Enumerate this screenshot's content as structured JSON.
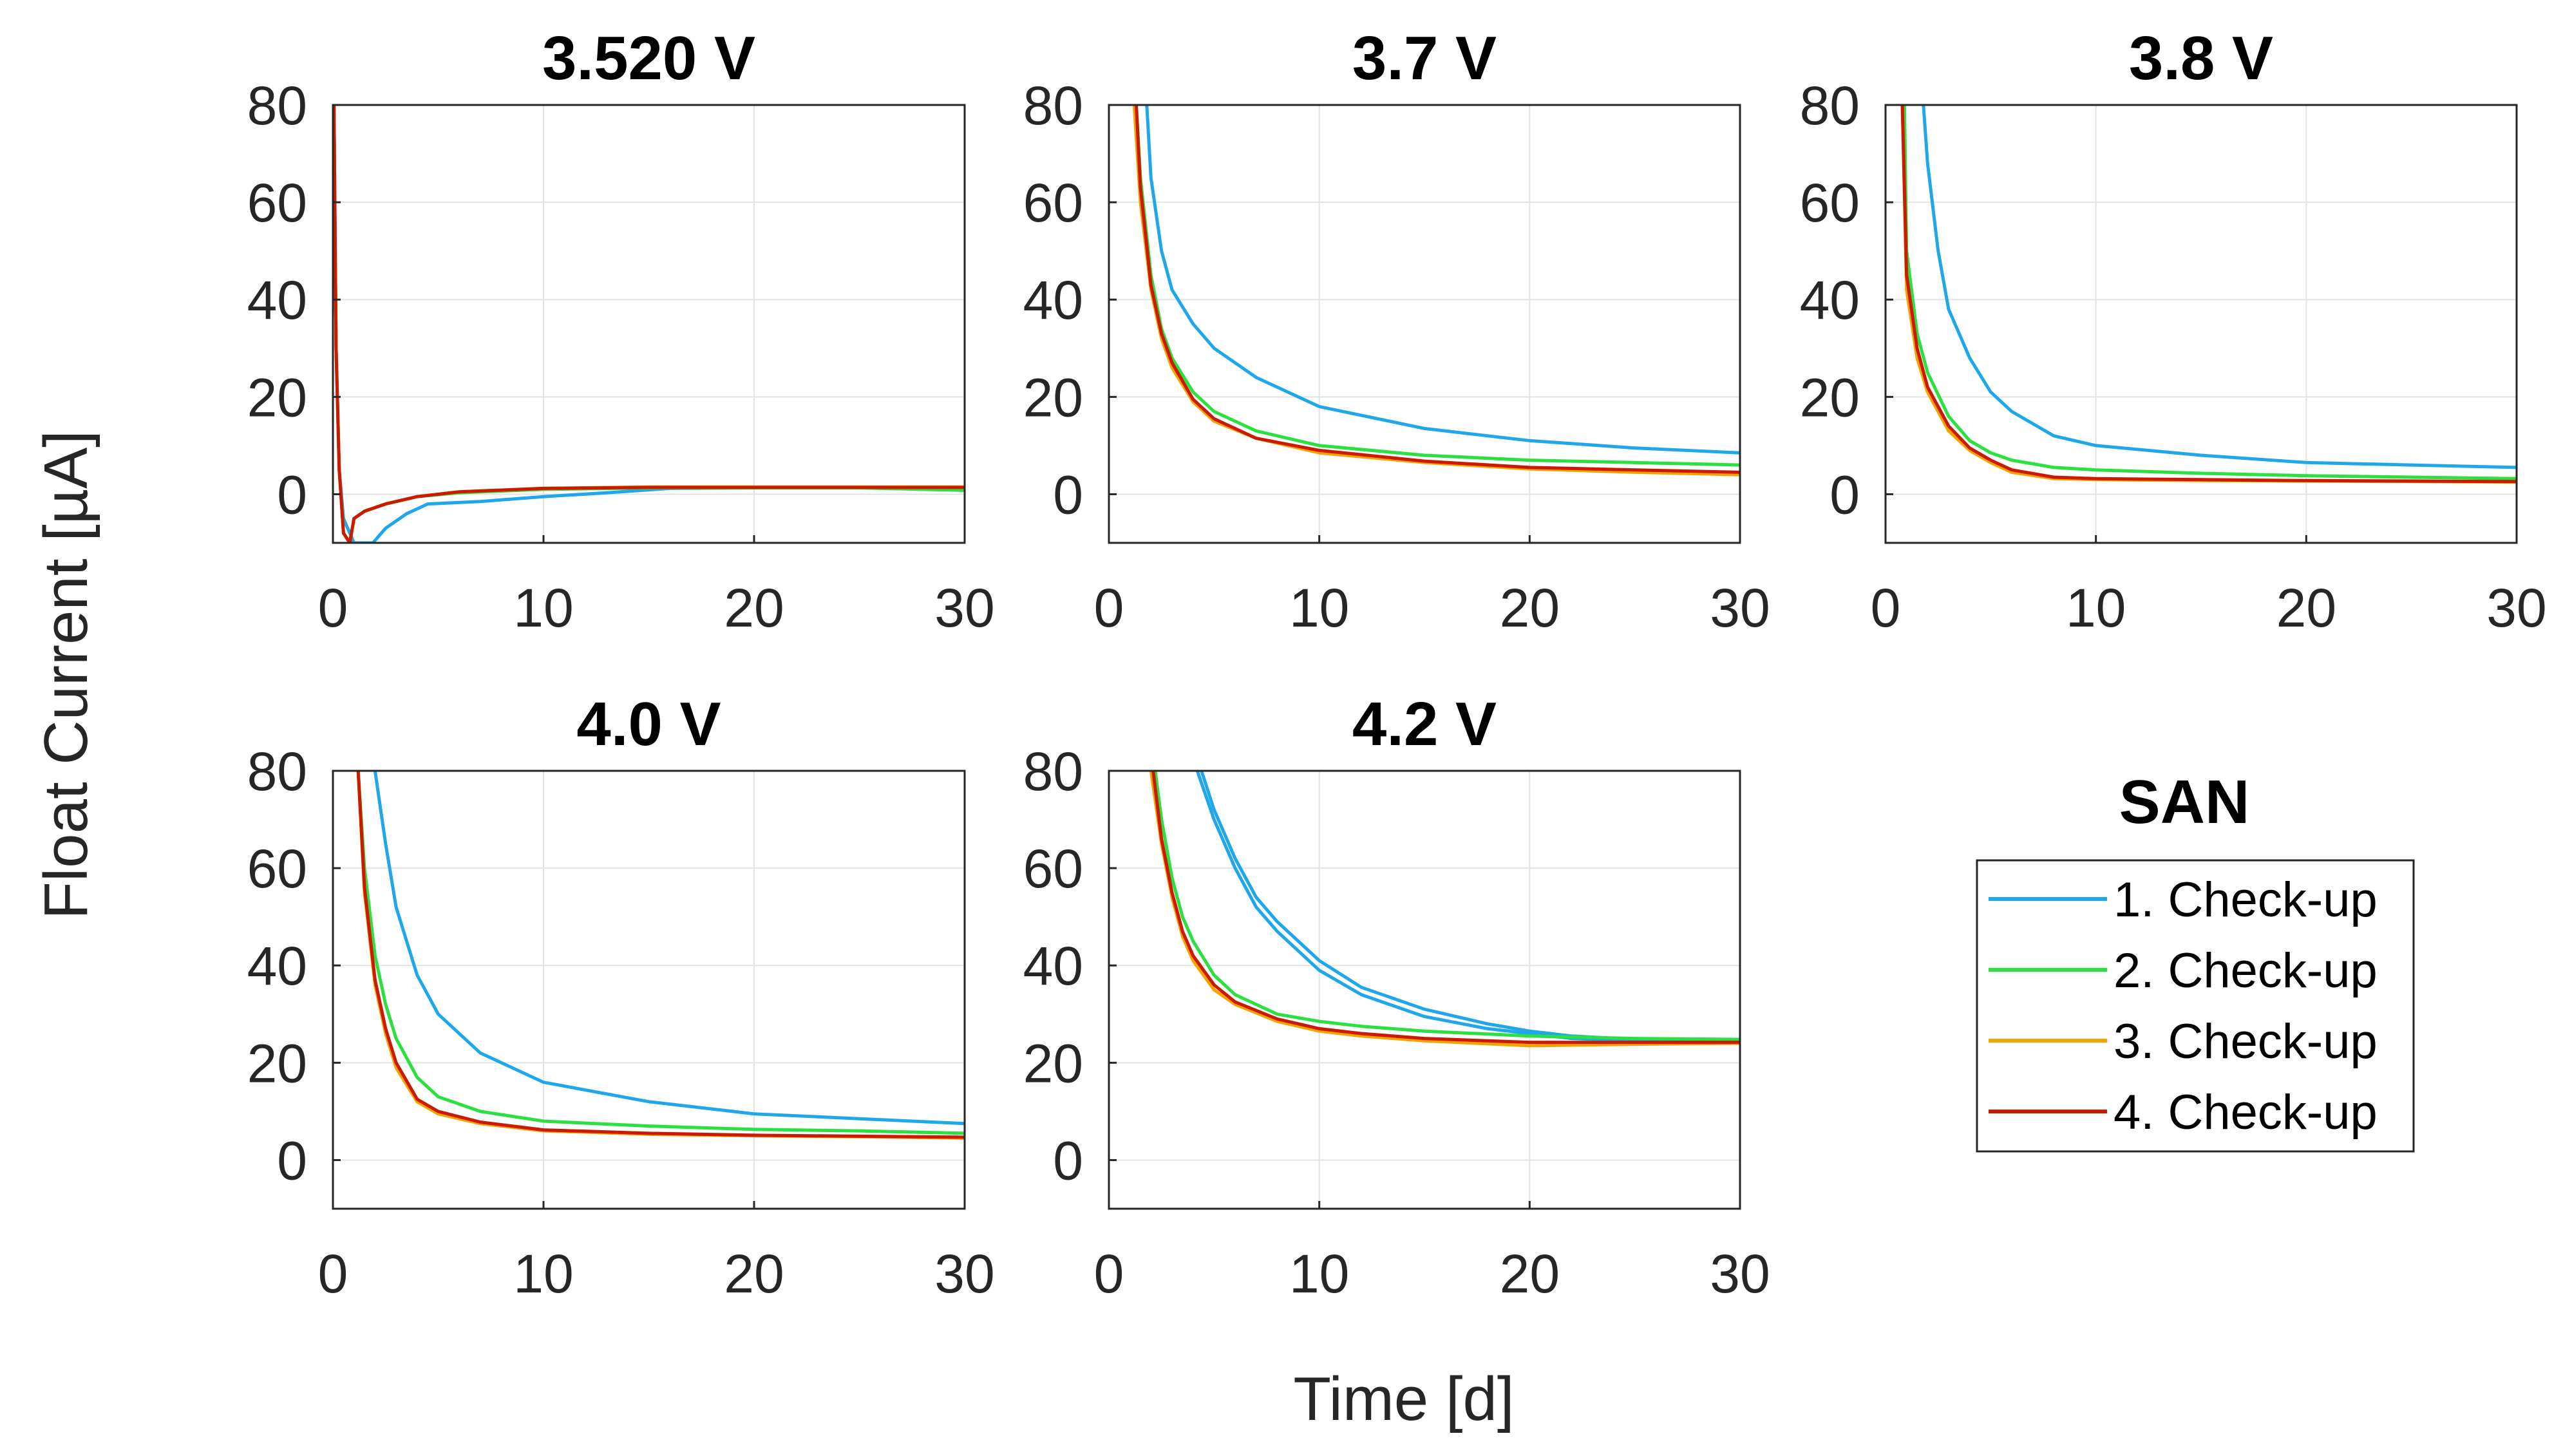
{
  "figure": {
    "ylabel": "Float Current [µA]",
    "xlabel": "Time [d]"
  },
  "legend": {
    "title": "SAN",
    "entries": [
      "1. Check-up",
      "2. Check-up",
      "3. Check-up",
      "4. Check-up"
    ],
    "colors": [
      "#1EA7EA",
      "#2BE040",
      "#F5A300",
      "#CC1A00"
    ]
  },
  "chart_data": [
    {
      "type": "line",
      "title": "3.520 V",
      "xlim": [
        0,
        30
      ],
      "ylim": [
        -10,
        80
      ],
      "xticks": [
        0,
        10,
        20,
        30
      ],
      "yticks": [
        0,
        20,
        40,
        60,
        80
      ],
      "grid": true,
      "series": [
        {
          "name": "1. Check-up",
          "x": [
            0.05,
            0.15,
            0.3,
            0.5,
            1.0,
            1.5,
            1.9,
            2.5,
            3.5,
            4.5,
            7,
            10,
            13,
            16,
            20,
            25,
            30
          ],
          "y": [
            80,
            30,
            5,
            -5,
            -10,
            -10,
            -10,
            -7,
            -4,
            -2,
            -1.5,
            -0.5,
            0.3,
            1.2,
            1.3,
            1.3,
            1.4
          ]
        },
        {
          "name": "2. Check-up",
          "x": [
            0.05,
            0.15,
            0.3,
            0.5,
            0.8,
            1.0,
            1.5,
            2.5,
            4,
            6,
            10,
            15,
            20,
            25,
            30
          ],
          "y": [
            80,
            30,
            5,
            -8,
            -10,
            -5,
            -3.5,
            -2,
            -0.5,
            0.3,
            1.0,
            1.3,
            1.3,
            1.3,
            0.8
          ]
        },
        {
          "name": "3. Check-up",
          "x": [
            0.05,
            0.15,
            0.3,
            0.5,
            0.8,
            1.0,
            1.5,
            2.5,
            4,
            6,
            10,
            15,
            20,
            25,
            30
          ],
          "y": [
            80,
            30,
            5,
            -8,
            -10,
            -5,
            -3.5,
            -2,
            -0.5,
            0.5,
            1.2,
            1.5,
            1.5,
            1.5,
            1.5
          ]
        },
        {
          "name": "4. Check-up",
          "x": [
            0.05,
            0.15,
            0.3,
            0.5,
            0.8,
            1.0,
            1.5,
            2.5,
            4,
            6,
            10,
            15,
            20,
            25,
            30
          ],
          "y": [
            80,
            30,
            5,
            -8,
            -10,
            -5,
            -3.5,
            -2,
            -0.5,
            0.5,
            1.2,
            1.4,
            1.4,
            1.4,
            1.4
          ]
        }
      ]
    },
    {
      "type": "line",
      "title": "3.7 V",
      "xlim": [
        0,
        30
      ],
      "ylim": [
        -10,
        80
      ],
      "xticks": [
        0,
        10,
        20,
        30
      ],
      "yticks": [
        0,
        20,
        40,
        60,
        80
      ],
      "grid": true,
      "series": [
        {
          "name": "1. Check-up",
          "x": [
            1.8,
            2,
            2.5,
            3,
            4,
            5,
            7,
            10,
            15,
            20,
            25,
            30
          ],
          "y": [
            80,
            65,
            50,
            42,
            35,
            30,
            24,
            18,
            13.5,
            11,
            9.5,
            8.5
          ]
        },
        {
          "name": "2. Check-up",
          "x": [
            1.3,
            1.5,
            2,
            2.5,
            3,
            4,
            5,
            7,
            10,
            15,
            20,
            25,
            30
          ],
          "y": [
            80,
            65,
            45,
            34,
            28,
            21,
            17,
            13,
            10,
            8,
            7,
            6.5,
            6
          ]
        },
        {
          "name": "3. Check-up",
          "x": [
            1.2,
            1.5,
            2,
            2.5,
            3,
            4,
            5,
            7,
            10,
            15,
            20,
            25,
            30
          ],
          "y": [
            80,
            60,
            42,
            32,
            26,
            19,
            15,
            11.5,
            8.5,
            6.5,
            5.2,
            4.5,
            4
          ]
        },
        {
          "name": "4. Check-up",
          "x": [
            1.3,
            1.5,
            2,
            2.5,
            3,
            4,
            5,
            7,
            10,
            15,
            20,
            25,
            30
          ],
          "y": [
            80,
            63,
            43,
            33,
            27,
            19.5,
            15.5,
            11.5,
            9,
            6.8,
            5.5,
            5,
            4.5
          ]
        }
      ]
    },
    {
      "type": "line",
      "title": "3.8 V",
      "xlim": [
        0,
        30
      ],
      "ylim": [
        -10,
        80
      ],
      "xticks": [
        0,
        10,
        20,
        30
      ],
      "yticks": [
        0,
        20,
        40,
        60,
        80
      ],
      "grid": true,
      "series": [
        {
          "name": "1. Check-up",
          "x": [
            1.8,
            2,
            2.5,
            3,
            4,
            5,
            6,
            8,
            10,
            15,
            20,
            25,
            30
          ],
          "y": [
            80,
            68,
            50,
            38,
            28,
            21,
            17,
            12,
            10,
            8,
            6.5,
            6,
            5.5
          ]
        },
        {
          "name": "2. Check-up",
          "x": [
            0.9,
            1,
            1.5,
            2,
            3,
            4,
            5,
            6,
            8,
            10,
            15,
            20,
            25,
            30
          ],
          "y": [
            80,
            50,
            33,
            25,
            16,
            11,
            8.5,
            7,
            5.5,
            5,
            4.3,
            3.8,
            3.5,
            3.2
          ]
        },
        {
          "name": "3. Check-up",
          "x": [
            0.8,
            1,
            1.5,
            2,
            3,
            4,
            5,
            6,
            8,
            10,
            15,
            20,
            25,
            30
          ],
          "y": [
            80,
            42,
            28,
            21,
            13,
            9,
            6.5,
            4.5,
            3.2,
            3,
            2.8,
            2.7,
            2.6,
            2.5
          ]
        },
        {
          "name": "4. Check-up",
          "x": [
            0.8,
            1,
            1.5,
            2,
            3,
            4,
            5,
            6,
            8,
            10,
            15,
            20,
            25,
            30
          ],
          "y": [
            80,
            45,
            30,
            22,
            14,
            9.5,
            7,
            5,
            3.5,
            3.2,
            3,
            2.8,
            2.7,
            2.6
          ]
        }
      ]
    },
    {
      "type": "line",
      "title": "4.0 V",
      "xlim": [
        0,
        30
      ],
      "ylim": [
        -10,
        80
      ],
      "xticks": [
        0,
        10,
        20,
        30
      ],
      "yticks": [
        0,
        20,
        40,
        60,
        80
      ],
      "grid": true,
      "series": [
        {
          "name": "1. Check-up",
          "x": [
            2,
            2.5,
            3,
            4,
            5,
            7,
            10,
            15,
            20,
            25,
            30
          ],
          "y": [
            80,
            65,
            52,
            38,
            30,
            22,
            16,
            12,
            9.5,
            8.5,
            7.5
          ]
        },
        {
          "name": "2. Check-up",
          "x": [
            1.2,
            1.5,
            2,
            2.5,
            3,
            4,
            5,
            7,
            10,
            15,
            20,
            25,
            30
          ],
          "y": [
            80,
            60,
            42,
            32,
            25,
            17,
            13,
            10,
            8,
            7,
            6.3,
            6,
            5.5
          ]
        },
        {
          "name": "3. Check-up",
          "x": [
            1.2,
            1.5,
            2,
            2.5,
            3,
            4,
            5,
            7,
            10,
            15,
            20,
            25,
            30
          ],
          "y": [
            80,
            55,
            36,
            26,
            19,
            12,
            9.5,
            7.5,
            6,
            5.3,
            5,
            4.8,
            4.5
          ]
        },
        {
          "name": "4. Check-up",
          "x": [
            1.2,
            1.5,
            2,
            2.5,
            3,
            4,
            5,
            7,
            10,
            15,
            20,
            25,
            30
          ],
          "y": [
            80,
            56,
            37,
            27,
            20,
            12.5,
            10,
            7.8,
            6.2,
            5.5,
            5.1,
            4.9,
            4.7
          ]
        }
      ]
    },
    {
      "type": "line",
      "title": "4.2 V",
      "xlim": [
        0,
        30
      ],
      "ylim": [
        -10,
        80
      ],
      "xticks": [
        0,
        10,
        20,
        30
      ],
      "yticks": [
        0,
        20,
        40,
        60,
        80
      ],
      "grid": true,
      "series": [
        {
          "name": "1. Check-up",
          "x": [
            4.2,
            5,
            6,
            7,
            8,
            10,
            12,
            15,
            18,
            20,
            22,
            25,
            30
          ],
          "y": [
            80,
            70,
            60,
            52,
            47,
            39,
            34,
            29.5,
            27,
            26,
            25,
            24.5,
            24
          ]
        },
        {
          "name": "1. Check-up",
          "x": [
            4.4,
            5,
            6,
            7,
            8,
            10,
            12,
            15,
            18,
            20,
            22,
            25,
            30
          ],
          "y": [
            80,
            72,
            62,
            54,
            49,
            41,
            35.5,
            31,
            28,
            26.5,
            25.5,
            24.8,
            24.3
          ]
        },
        {
          "name": "2. Check-up",
          "x": [
            2.2,
            2.5,
            3,
            3.5,
            4,
            5,
            6,
            8,
            10,
            12,
            15,
            20,
            25,
            30
          ],
          "y": [
            80,
            70,
            58,
            50,
            45,
            38,
            34,
            30,
            28.5,
            27.5,
            26.5,
            25.5,
            25,
            24.8
          ]
        },
        {
          "name": "3. Check-up",
          "x": [
            2.0,
            2.5,
            3,
            3.5,
            4,
            5,
            6,
            8,
            10,
            12,
            15,
            20,
            25,
            30
          ],
          "y": [
            80,
            65,
            54,
            46,
            41,
            35,
            32,
            28.5,
            26.5,
            25.5,
            24.5,
            23.5,
            23.8,
            24
          ]
        },
        {
          "name": "4. Check-up",
          "x": [
            2.1,
            2.5,
            3,
            3.5,
            4,
            5,
            6,
            8,
            10,
            12,
            15,
            20,
            25,
            30
          ],
          "y": [
            80,
            66,
            55,
            47,
            42,
            36,
            32.5,
            29,
            27,
            26,
            25,
            24.2,
            24.2,
            24.2
          ]
        }
      ]
    }
  ]
}
